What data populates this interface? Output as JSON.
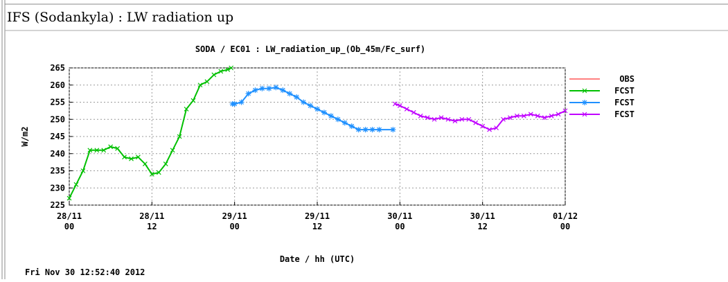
{
  "page": {
    "heading": "IFS (Sodankyla) : LW radiation up"
  },
  "chart_data": {
    "type": "line",
    "title": "SODA / EC01 : LW_radiation_up_(Ob_45m/Fc_surf)",
    "x_label": "Date / hh (UTC)",
    "y_label": "W/m2",
    "timestamp": "Fri Nov 30 12:52:40 2012",
    "xlim": [
      0,
      72
    ],
    "xticks": [
      {
        "value": 0,
        "label": "28/11 00"
      },
      {
        "value": 12,
        "label": "28/11 12"
      },
      {
        "value": 24,
        "label": "29/11 00"
      },
      {
        "value": 36,
        "label": "29/11 12"
      },
      {
        "value": 48,
        "label": "30/11 00"
      },
      {
        "value": 60,
        "label": "30/11 12"
      },
      {
        "value": 72,
        "label": "01/12 00"
      }
    ],
    "ylim": [
      225,
      265
    ],
    "yticks": [
      225,
      230,
      235,
      240,
      245,
      250,
      255,
      260,
      265
    ],
    "grid": true,
    "series": [
      {
        "name": "OBS",
        "color": "#ff0000",
        "x": [],
        "values": []
      },
      {
        "name": "FCST",
        "color": "#00c000",
        "x": [
          0,
          1,
          2,
          3,
          4,
          5,
          6,
          7,
          8,
          9,
          10,
          11,
          12,
          13,
          14,
          15,
          16,
          17,
          18,
          19,
          20,
          21,
          22,
          23,
          23.5
        ],
        "values": [
          227,
          231,
          235,
          241,
          241,
          241,
          242,
          241.5,
          239,
          238.5,
          239,
          237,
          234,
          234.5,
          237,
          241,
          245,
          253,
          255.5,
          260,
          261,
          263,
          264,
          264.5,
          265
        ]
      },
      {
        "name": "FCST",
        "color": "#1e90ff",
        "x": [
          23.7,
          24,
          25,
          26,
          27,
          28,
          29,
          30,
          31,
          32,
          33,
          34,
          35,
          36,
          37,
          38,
          39,
          40,
          41,
          42,
          43,
          44,
          45,
          47
        ],
        "values": [
          254.5,
          254.5,
          255,
          257.5,
          258.5,
          259,
          259,
          259.3,
          258.5,
          257.5,
          256.5,
          255,
          254,
          253,
          252,
          251,
          250,
          249,
          248,
          247,
          247,
          247,
          247,
          247
        ]
      },
      {
        "name": "FCST",
        "color": "#c000ff",
        "x": [
          47.3,
          48,
          49,
          50,
          51,
          52,
          53,
          54,
          55,
          56,
          57,
          58,
          59,
          60,
          61,
          62,
          63,
          64,
          65,
          66,
          67,
          68,
          69,
          70,
          71,
          72
        ],
        "values": [
          254.5,
          254,
          253,
          252,
          251,
          250.5,
          250,
          250.5,
          250,
          249.5,
          250,
          250,
          249,
          248,
          247,
          247.5,
          250,
          250.5,
          251,
          251,
          251.5,
          251,
          250.5,
          251,
          251.5,
          252.5
        ]
      }
    ]
  }
}
